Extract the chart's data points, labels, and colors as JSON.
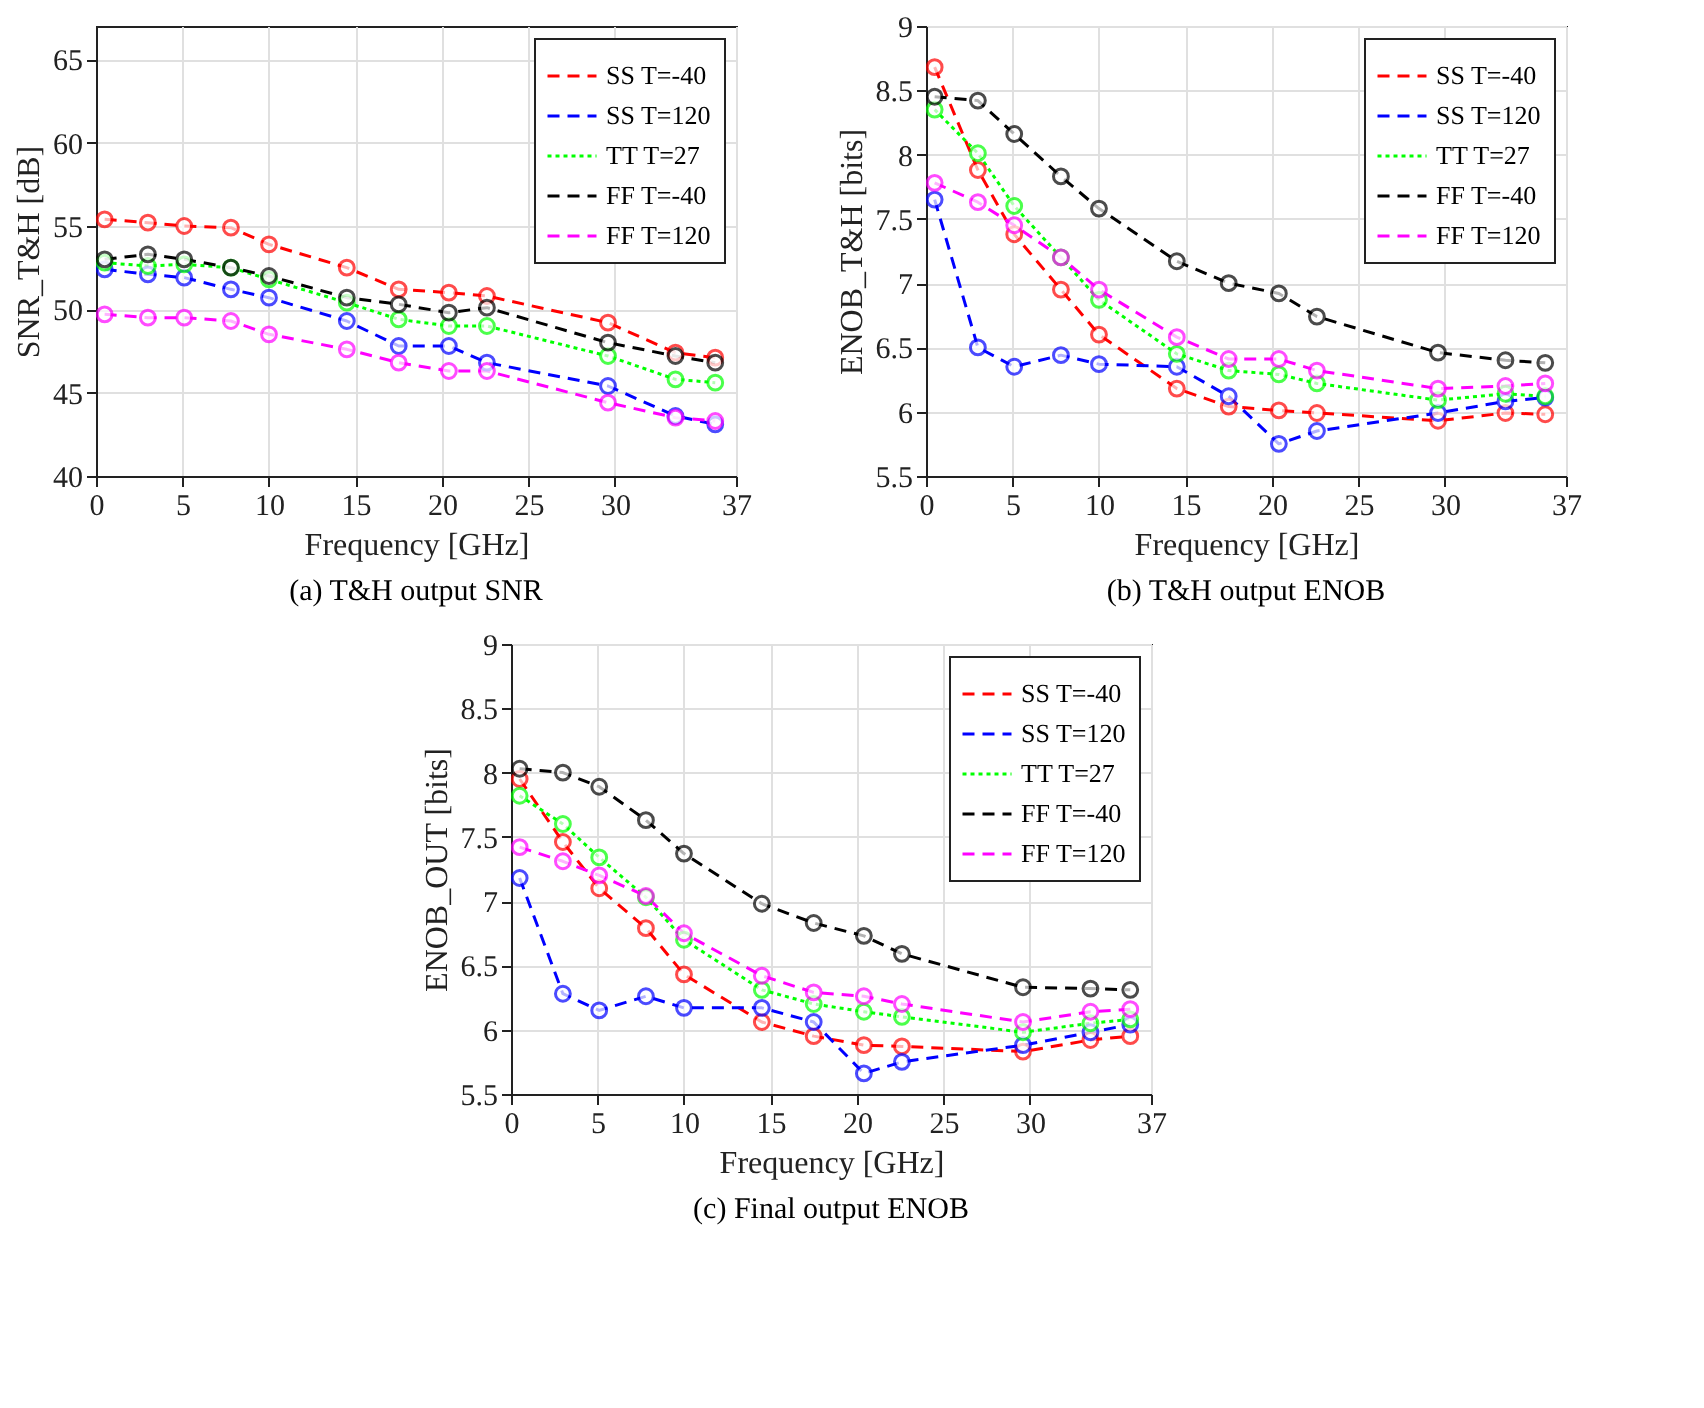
{
  "chart_data": [
    {
      "type": "line",
      "title": "(a) T&H output SNR",
      "xlabel": "Frequency [GHz]",
      "ylabel": "SNR_T&H [dB]",
      "x": [
        0.5,
        3,
        5.1,
        7.8,
        10,
        14.5,
        17.5,
        20.4,
        22.6,
        29.6,
        33.5,
        35.8
      ],
      "xlim": [
        0,
        37
      ],
      "xticks": [
        0,
        5,
        10,
        15,
        20,
        25,
        30,
        37
      ],
      "ylim": [
        40,
        67
      ],
      "yticks": [
        40,
        45,
        50,
        55,
        60,
        65
      ],
      "grid": true,
      "legend": "top right",
      "marker": "circle",
      "series": [
        {
          "name": "SS T=-40",
          "color": "#ff0000",
          "line_style": "dashed",
          "values": [
            55.4,
            55.2,
            55.0,
            54.9,
            53.9,
            52.5,
            51.2,
            51.0,
            50.8,
            49.2,
            47.4,
            47.1
          ]
        },
        {
          "name": "SS T=120",
          "color": "#0000ff",
          "line_style": "dashed",
          "values": [
            52.4,
            52.1,
            51.9,
            51.2,
            50.7,
            49.3,
            47.8,
            47.8,
            46.8,
            45.4,
            43.6,
            43.1
          ]
        },
        {
          "name": "TT T=27",
          "color": "#00ff00",
          "line_style": "dotted",
          "values": [
            52.8,
            52.6,
            52.7,
            52.5,
            51.8,
            50.4,
            49.4,
            49.0,
            49.0,
            47.2,
            45.8,
            45.6
          ]
        },
        {
          "name": "FF T=-40",
          "color": "#000000",
          "line_style": "dashed",
          "values": [
            53.0,
            53.3,
            53.0,
            52.5,
            52.0,
            50.7,
            50.3,
            49.8,
            50.1,
            48.0,
            47.2,
            46.8
          ]
        },
        {
          "name": "FF T=120",
          "color": "#ff00ff",
          "line_style": "dashed",
          "values": [
            49.7,
            49.5,
            49.5,
            49.3,
            48.5,
            47.6,
            46.8,
            46.3,
            46.3,
            44.4,
            43.5,
            43.3
          ]
        }
      ]
    },
    {
      "type": "line",
      "title": "(b) T&H output ENOB",
      "xlabel": "Frequency [GHz]",
      "ylabel": "ENOB_T&H [bits]",
      "x": [
        0.5,
        3,
        5.1,
        7.8,
        10,
        14.5,
        17.5,
        20.4,
        22.6,
        29.6,
        33.5,
        35.8
      ],
      "xlim": [
        0,
        37
      ],
      "xticks": [
        0,
        5,
        10,
        15,
        20,
        25,
        30,
        37
      ],
      "ylim": [
        5.5,
        9
      ],
      "yticks": [
        5.5,
        6,
        6.5,
        7,
        7.5,
        8,
        8.5,
        9
      ],
      "grid": true,
      "legend": "top right",
      "marker": "circle",
      "series": [
        {
          "name": "SS T=-40",
          "color": "#ff0000",
          "line_style": "dashed",
          "values": [
            8.68,
            7.88,
            7.38,
            6.95,
            6.6,
            6.18,
            6.04,
            6.01,
            5.99,
            5.93,
            5.99,
            5.98
          ]
        },
        {
          "name": "SS T=120",
          "color": "#0000ff",
          "line_style": "dashed",
          "values": [
            7.65,
            6.5,
            6.35,
            6.44,
            6.37,
            6.35,
            6.12,
            5.75,
            5.85,
            5.99,
            6.08,
            6.11
          ]
        },
        {
          "name": "TT T=27",
          "color": "#00ff00",
          "line_style": "dotted",
          "values": [
            8.35,
            8.01,
            7.6,
            7.2,
            6.87,
            6.45,
            6.32,
            6.29,
            6.22,
            6.09,
            6.14,
            6.12
          ]
        },
        {
          "name": "FF T=-40",
          "color": "#000000",
          "line_style": "dashed",
          "values": [
            8.45,
            8.42,
            8.16,
            7.83,
            7.58,
            7.17,
            7.0,
            6.92,
            6.74,
            6.46,
            6.4,
            6.38
          ]
        },
        {
          "name": "FF T=120",
          "color": "#ff00ff",
          "line_style": "dashed",
          "values": [
            7.78,
            7.63,
            7.45,
            7.2,
            6.95,
            6.58,
            6.41,
            6.41,
            6.32,
            6.18,
            6.2,
            6.22
          ]
        }
      ]
    },
    {
      "type": "line",
      "title": "(c) Final output ENOB",
      "xlabel": "Frequency [GHz]",
      "ylabel": "ENOB_OUT [bits]",
      "x": [
        0.5,
        3,
        5.1,
        7.8,
        10,
        14.5,
        17.5,
        20.4,
        22.6,
        29.6,
        33.5,
        35.8
      ],
      "xlim": [
        0,
        37
      ],
      "xticks": [
        0,
        5,
        10,
        15,
        20,
        25,
        30,
        37
      ],
      "ylim": [
        5.5,
        9
      ],
      "yticks": [
        5.5,
        6,
        6.5,
        7,
        7.5,
        8,
        8.5,
        9
      ],
      "grid": true,
      "legend": "top right",
      "marker": "circle",
      "series": [
        {
          "name": "SS T=-40",
          "color": "#ff0000",
          "line_style": "dashed",
          "values": [
            7.95,
            7.46,
            7.1,
            6.79,
            6.43,
            6.06,
            5.95,
            5.88,
            5.87,
            5.83,
            5.92,
            5.95
          ]
        },
        {
          "name": "SS T=120",
          "color": "#0000ff",
          "line_style": "dashed",
          "values": [
            7.18,
            6.28,
            6.15,
            6.26,
            6.17,
            6.17,
            6.06,
            5.66,
            5.75,
            5.88,
            5.98,
            6.04
          ]
        },
        {
          "name": "TT T=27",
          "color": "#00ff00",
          "line_style": "dotted",
          "values": [
            7.82,
            7.6,
            7.34,
            7.03,
            6.7,
            6.31,
            6.2,
            6.14,
            6.1,
            5.98,
            6.05,
            6.08
          ]
        },
        {
          "name": "FF T=-40",
          "color": "#000000",
          "line_style": "dashed",
          "values": [
            8.03,
            8.0,
            7.89,
            7.63,
            7.37,
            6.98,
            6.83,
            6.73,
            6.59,
            6.33,
            6.32,
            6.31
          ]
        },
        {
          "name": "FF T=120",
          "color": "#ff00ff",
          "line_style": "dashed",
          "values": [
            7.42,
            7.31,
            7.2,
            7.04,
            6.75,
            6.42,
            6.29,
            6.26,
            6.2,
            6.06,
            6.14,
            6.16
          ]
        }
      ]
    }
  ]
}
